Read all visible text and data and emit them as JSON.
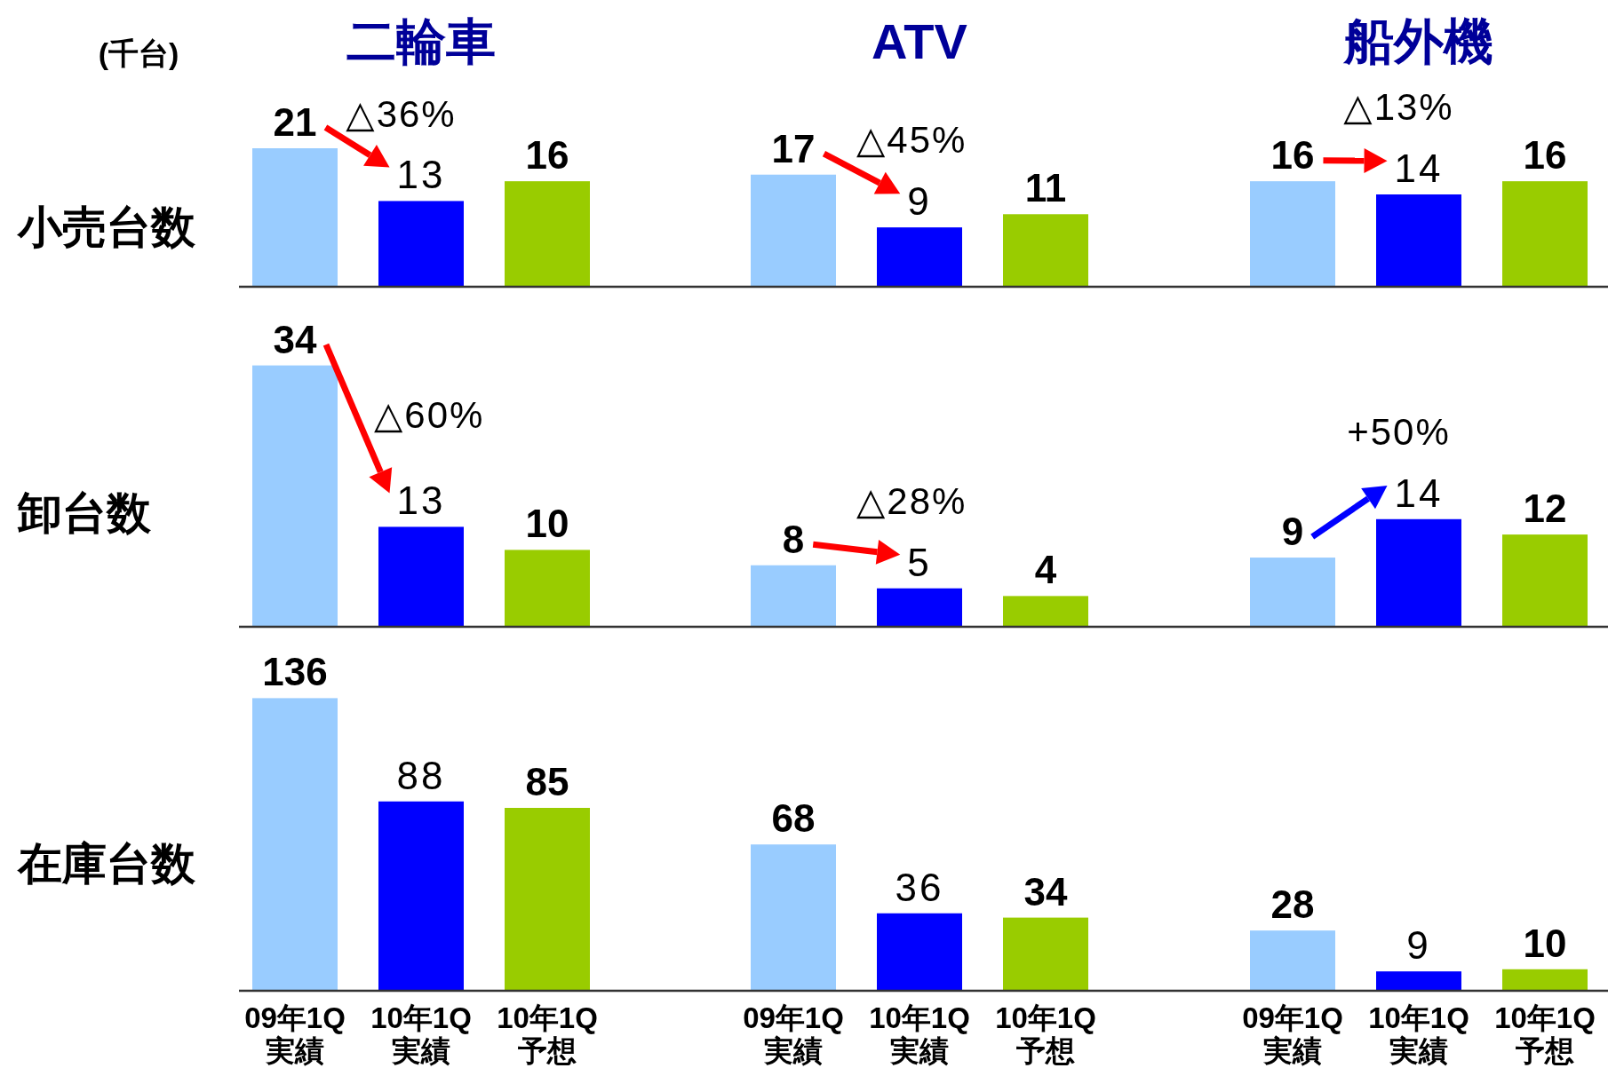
{
  "chart_data": [
    {
      "type": "bar",
      "title": "二輪車",
      "ylabel": "小売台数",
      "categories": [
        null,
        null,
        null
      ],
      "values": [
        21,
        13,
        16
      ],
      "colors": [
        "#99ccff",
        "#0000ff",
        "#99cc00"
      ],
      "data_labels": true,
      "annotations": [
        "(千台)",
        {
          "text": "△36%",
          "y": 13
        }
      ]
    },
    {
      "type": "bar",
      "title": "ATV",
      "categories": [
        null,
        null,
        null
      ],
      "values": [
        17,
        9,
        11
      ],
      "colors": [
        "#99ccff",
        "#0000ff",
        "#99cc00"
      ],
      "data_labels": true,
      "annotations": [
        {
          "text": "△45%",
          "y": 9
        }
      ]
    },
    {
      "type": "bar",
      "title": "船外機",
      "categories": [
        null,
        null,
        null
      ],
      "values": [
        16,
        14,
        16
      ],
      "colors": [
        "#99ccff",
        "#0000ff",
        "#99cc00"
      ],
      "data_labels": true,
      "annotations": [
        {
          "text": "△13%",
          "y": 14
        }
      ]
    },
    {
      "type": "bar",
      "ylabel": "卸台数",
      "categories": [
        null,
        null,
        null
      ],
      "values": [
        34,
        13,
        10
      ],
      "colors": [
        "#99ccff",
        "#0000ff",
        "#99cc00"
      ],
      "data_labels": true,
      "annotations": [
        {
          "text": "△60%",
          "y": 13
        }
      ]
    },
    {
      "type": "bar",
      "categories": [
        null,
        null,
        null
      ],
      "values": [
        8,
        5,
        4
      ],
      "colors": [
        "#99ccff",
        "#0000ff",
        "#99cc00"
      ],
      "data_labels": true,
      "annotations": [
        {
          "text": "△28%",
          "y": 5
        }
      ]
    },
    {
      "type": "bar",
      "categories": [
        null,
        null,
        null
      ],
      "values": [
        9,
        14,
        12
      ],
      "colors": [
        "#99ccff",
        "#0000ff",
        "#99cc00"
      ],
      "data_labels": true,
      "annotations": [
        {
          "text": "+50%",
          "y": 14
        }
      ]
    },
    {
      "type": "bar",
      "ylabel": "在庫台数",
      "categories": [
        "09年1Q\n実績",
        "10年1Q\n実績",
        "10年1Q\n予想"
      ],
      "values": [
        136,
        88,
        85
      ],
      "colors": [
        "#99ccff",
        "#0000ff",
        "#99cc00"
      ],
      "data_labels": true,
      "tick_labels": "x"
    },
    {
      "type": "bar",
      "categories": [
        "09年1Q\n実績",
        "10年1Q\n実績",
        "10年1Q\n予想"
      ],
      "values": [
        68,
        36,
        34
      ],
      "colors": [
        "#99ccff",
        "#0000ff",
        "#99cc00"
      ],
      "data_labels": true,
      "tick_labels": "x"
    },
    {
      "type": "bar",
      "categories": [
        "09年1Q\n実績",
        "10年1Q\n実績",
        "10年1Q\n予想"
      ],
      "values": [
        28,
        9,
        10
      ],
      "colors": [
        "#99ccff",
        "#0000ff",
        "#99cc00"
      ],
      "data_labels": true,
      "tick_labels": "x"
    }
  ]
}
